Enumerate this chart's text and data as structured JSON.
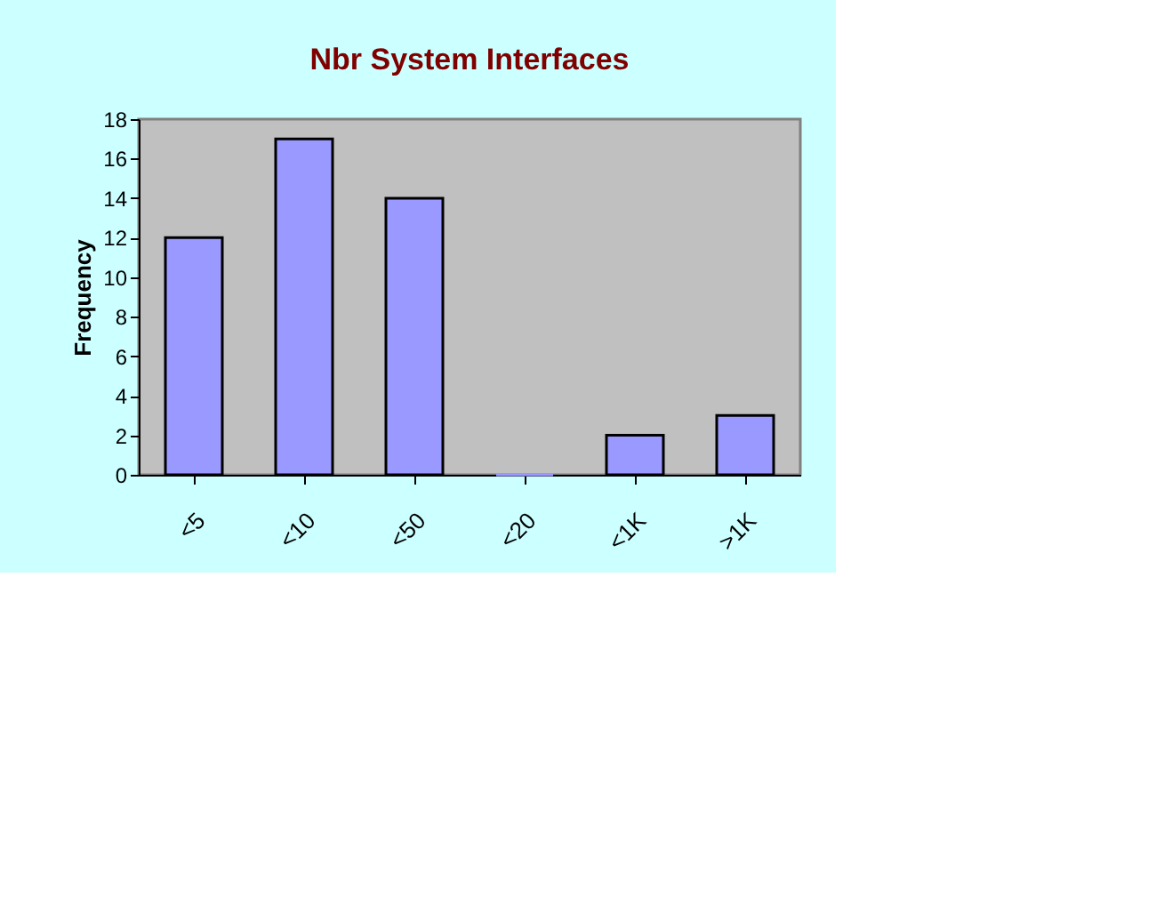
{
  "chart_data": {
    "type": "bar",
    "title": "Nbr System Interfaces",
    "ylabel": "Frequency",
    "categories": [
      "<5",
      "<10",
      "<50",
      "<20",
      "<1K",
      ">1K"
    ],
    "values": [
      12,
      17,
      14,
      0,
      2,
      3
    ],
    "color": "#9999ff",
    "ylim": [
      0,
      18
    ],
    "yticks": [
      0,
      2,
      4,
      6,
      8,
      10,
      12,
      14,
      16,
      18
    ],
    "grid": false
  }
}
